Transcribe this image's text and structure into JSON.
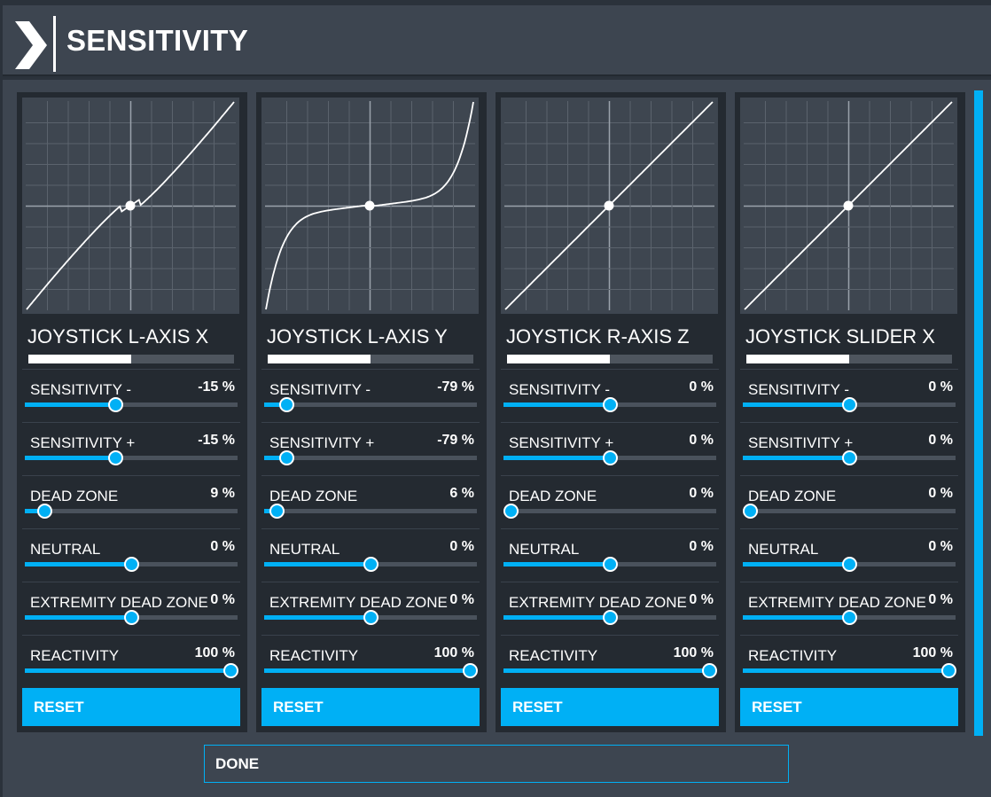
{
  "header": {
    "title": "SENSITIVITY"
  },
  "colors": {
    "accent": "#00b0f5",
    "panel": "#3d4550",
    "card": "#242a31",
    "graph": "#3e4650"
  },
  "axes": [
    {
      "name": "JOYSTICK L-AXIS X",
      "curve_type": "sensitivity -15% with 9% dead zone",
      "indicator_fraction": 0.5,
      "settings": [
        {
          "label": "SENSITIVITY -",
          "value": "-15 %",
          "fraction": 0.425
        },
        {
          "label": "SENSITIVITY +",
          "value": "-15 %",
          "fraction": 0.425
        },
        {
          "label": "DEAD ZONE",
          "value": "9 %",
          "fraction": 0.09
        },
        {
          "label": "NEUTRAL",
          "value": "0 %",
          "fraction": 0.5
        },
        {
          "label": "EXTREMITY DEAD ZONE",
          "value": "0 %",
          "fraction": 0.5
        },
        {
          "label": "REACTIVITY",
          "value": "100 %",
          "fraction": 1.0
        }
      ],
      "reset_label": "RESET"
    },
    {
      "name": "JOYSTICK L-AXIS Y",
      "curve_type": "sensitivity -79% with 6% dead zone",
      "indicator_fraction": 0.5,
      "settings": [
        {
          "label": "SENSITIVITY -",
          "value": "-79 %",
          "fraction": 0.105
        },
        {
          "label": "SENSITIVITY +",
          "value": "-79 %",
          "fraction": 0.105
        },
        {
          "label": "DEAD ZONE",
          "value": "6 %",
          "fraction": 0.06
        },
        {
          "label": "NEUTRAL",
          "value": "0 %",
          "fraction": 0.5
        },
        {
          "label": "EXTREMITY DEAD ZONE",
          "value": "0 %",
          "fraction": 0.5
        },
        {
          "label": "REACTIVITY",
          "value": "100 %",
          "fraction": 1.0
        }
      ],
      "reset_label": "RESET"
    },
    {
      "name": "JOYSTICK R-AXIS Z",
      "curve_type": "linear",
      "indicator_fraction": 0.5,
      "settings": [
        {
          "label": "SENSITIVITY -",
          "value": "0 %",
          "fraction": 0.5
        },
        {
          "label": "SENSITIVITY +",
          "value": "0 %",
          "fraction": 0.5
        },
        {
          "label": "DEAD ZONE",
          "value": "0 %",
          "fraction": 0.0
        },
        {
          "label": "NEUTRAL",
          "value": "0 %",
          "fraction": 0.5
        },
        {
          "label": "EXTREMITY DEAD ZONE",
          "value": "0 %",
          "fraction": 0.5
        },
        {
          "label": "REACTIVITY",
          "value": "100 %",
          "fraction": 1.0
        }
      ],
      "reset_label": "RESET"
    },
    {
      "name": "JOYSTICK SLIDER X",
      "curve_type": "linear",
      "indicator_fraction": 0.5,
      "settings": [
        {
          "label": "SENSITIVITY -",
          "value": "0 %",
          "fraction": 0.5
        },
        {
          "label": "SENSITIVITY +",
          "value": "0 %",
          "fraction": 0.5
        },
        {
          "label": "DEAD ZONE",
          "value": "0 %",
          "fraction": 0.0
        },
        {
          "label": "NEUTRAL",
          "value": "0 %",
          "fraction": 0.5
        },
        {
          "label": "EXTREMITY DEAD ZONE",
          "value": "0 %",
          "fraction": 0.5
        },
        {
          "label": "REACTIVITY",
          "value": "100 %",
          "fraction": 1.0
        }
      ],
      "reset_label": "RESET"
    }
  ],
  "footer": {
    "done_label": "DONE"
  }
}
